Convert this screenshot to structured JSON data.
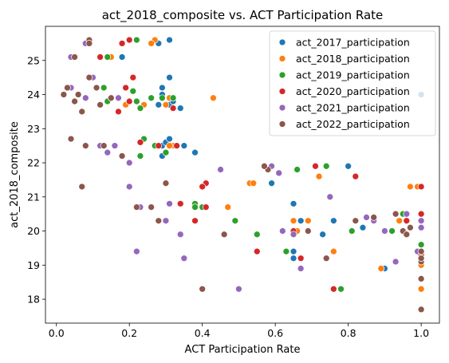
{
  "chart_data": {
    "type": "scatter",
    "title": "act_2018_composite vs. ACT Participation Rate",
    "xlabel": "ACT Participation Rate",
    "ylabel": "act_2018_composite",
    "xlim": [
      -0.03,
      1.05
    ],
    "ylim": [
      17.3,
      26.0
    ],
    "xticks": [
      0.0,
      0.2,
      0.4,
      0.6,
      0.8,
      1.0
    ],
    "xtick_labels": [
      "0.0",
      "0.2",
      "0.4",
      "0.6",
      "0.8",
      "1.0"
    ],
    "yticks": [
      18,
      19,
      20,
      21,
      22,
      23,
      24,
      25
    ],
    "ytick_labels": [
      "18",
      "19",
      "20",
      "21",
      "22",
      "23",
      "24",
      "25"
    ],
    "grid": false,
    "legend_position": "top-right",
    "series": [
      {
        "name": "act_2017_participation",
        "color": "#1f77b4",
        "x": [
          0.31,
          0.28,
          0.29,
          0.18,
          0.26,
          0.29,
          0.31,
          0.34,
          0.31,
          0.29,
          0.38,
          0.35,
          0.29,
          0.3,
          0.31,
          0.59,
          0.65,
          0.67,
          0.73,
          0.76,
          0.8,
          0.84,
          0.9,
          1.0,
          0.65,
          0.65,
          0.28,
          0.32
        ],
        "y": [
          25.6,
          25.5,
          24.2,
          25.1,
          23.9,
          24.0,
          24.5,
          23.6,
          23.7,
          22.5,
          22.3,
          22.5,
          22.2,
          22.6,
          22.7,
          21.4,
          20.8,
          20.3,
          19.9,
          20.3,
          21.9,
          20.1,
          18.9,
          24.0,
          19.2,
          19.4,
          23.7,
          23.8
        ]
      },
      {
        "name": "act_2018_participation",
        "color": "#ff7f0e",
        "x": [
          0.27,
          0.26,
          0.15,
          0.04,
          0.06,
          0.19,
          0.31,
          0.24,
          0.43,
          0.3,
          0.32,
          0.53,
          0.54,
          0.47,
          0.65,
          0.72,
          0.66,
          0.69,
          0.76,
          0.97,
          0.99,
          0.89,
          0.94,
          1.0,
          1.0,
          1.0,
          0.31
        ],
        "y": [
          25.6,
          25.5,
          25.1,
          24.2,
          24.0,
          23.7,
          23.9,
          23.7,
          23.9,
          23.7,
          22.5,
          21.4,
          21.4,
          20.7,
          20.3,
          21.6,
          20.0,
          20.3,
          19.4,
          21.3,
          21.3,
          18.9,
          20.3,
          18.3,
          19.3,
          19.0,
          22.5
        ]
      },
      {
        "name": "act_2019_participation",
        "color": "#2ca02c",
        "x": [
          0.22,
          0.14,
          0.13,
          0.19,
          0.17,
          0.22,
          0.23,
          0.26,
          0.21,
          0.17,
          0.14,
          0.32,
          0.29,
          0.24,
          0.23,
          0.3,
          0.27,
          0.38,
          0.49,
          0.55,
          0.63,
          0.66,
          0.74,
          0.78,
          0.81,
          0.92,
          0.95,
          1.0,
          1.0,
          0.4,
          0.38
        ],
        "y": [
          25.6,
          25.1,
          24.2,
          24.2,
          23.5,
          23.8,
          23.6,
          23.9,
          24.1,
          23.5,
          23.8,
          23.9,
          23.9,
          22.7,
          22.2,
          22.3,
          22.5,
          20.8,
          20.3,
          19.9,
          19.4,
          21.8,
          21.9,
          18.3,
          20.0,
          20.0,
          20.5,
          20.3,
          19.6,
          20.7,
          20.7
        ]
      },
      {
        "name": "act_2020_participation",
        "color": "#d62728",
        "x": [
          0.2,
          0.18,
          0.12,
          0.21,
          0.19,
          0.11,
          0.15,
          0.17,
          0.2,
          0.32,
          0.23,
          0.28,
          0.2,
          0.33,
          0.41,
          0.4,
          0.38,
          0.34,
          0.41,
          0.55,
          0.67,
          0.71,
          0.76,
          0.82,
          0.65,
          1.0,
          0.96,
          1.0,
          1.0,
          1.0
        ],
        "y": [
          25.6,
          25.5,
          25.1,
          24.5,
          24.2,
          24.2,
          23.9,
          23.5,
          23.8,
          23.6,
          22.6,
          22.5,
          22.0,
          22.5,
          21.4,
          21.3,
          20.3,
          20.8,
          20.7,
          19.4,
          19.2,
          21.9,
          18.3,
          21.6,
          20.0,
          20.5,
          20.3,
          19.3,
          19.4,
          21.3
        ]
      },
      {
        "name": "act_2021_participation",
        "color": "#9467bd",
        "x": [
          0.04,
          0.08,
          0.1,
          0.08,
          0.17,
          0.04,
          0.2,
          0.14,
          0.16,
          0.12,
          0.2,
          0.23,
          0.3,
          0.31,
          0.34,
          0.35,
          0.22,
          0.45,
          0.5,
          0.59,
          0.61,
          0.62,
          0.65,
          0.67,
          0.75,
          0.87,
          0.85,
          0.93,
          0.9,
          0.99,
          1.0,
          1.0,
          0.96
        ],
        "y": [
          25.1,
          25.5,
          24.5,
          23.9,
          23.9,
          24.2,
          22.0,
          22.3,
          22.5,
          22.5,
          21.3,
          20.7,
          20.3,
          20.8,
          19.9,
          19.2,
          19.4,
          21.8,
          18.3,
          21.9,
          21.7,
          20.0,
          19.9,
          18.9,
          21.0,
          20.3,
          20.4,
          19.1,
          20.0,
          19.4,
          20.1,
          20.3,
          20.5
        ]
      },
      {
        "name": "act_2022_participation",
        "color": "#8c564b",
        "x": [
          0.09,
          0.09,
          0.05,
          0.03,
          0.09,
          0.11,
          0.15,
          0.05,
          0.06,
          0.12,
          0.02,
          0.07,
          0.04,
          0.08,
          0.07,
          0.13,
          0.18,
          0.22,
          0.3,
          0.28,
          0.26,
          0.3,
          0.4,
          0.46,
          0.58,
          0.57,
          0.69,
          0.74,
          0.82,
          0.87,
          0.95,
          0.93,
          1.0,
          0.97,
          0.96,
          1.0,
          1.0,
          1.0,
          1.0
        ],
        "y": [
          25.6,
          25.5,
          25.1,
          24.2,
          24.5,
          24.2,
          23.9,
          23.8,
          24.0,
          23.7,
          24.0,
          23.5,
          22.7,
          22.5,
          21.3,
          22.5,
          22.2,
          20.7,
          21.4,
          20.3,
          20.7,
          21.4,
          18.3,
          19.9,
          21.8,
          21.9,
          20.0,
          19.2,
          20.3,
          20.4,
          20.0,
          20.5,
          18.6,
          20.1,
          19.9,
          17.7,
          19.1,
          19.4,
          19.2
        ]
      }
    ]
  }
}
